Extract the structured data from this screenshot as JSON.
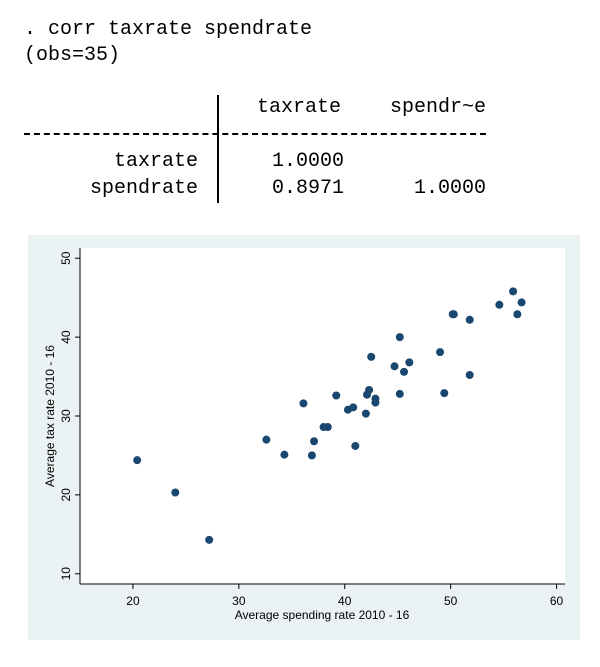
{
  "console": {
    "command": ". corr taxrate spendrate",
    "obs": "(obs=35)",
    "columns": [
      "taxrate",
      "spendr~e"
    ],
    "rows": [
      {
        "label": "taxrate",
        "values": [
          "1.0000"
        ]
      },
      {
        "label": "spendrate",
        "values": [
          "0.8971",
          "1.0000"
        ]
      }
    ]
  },
  "chart_data": {
    "type": "scatter",
    "x_label": "Average spending rate 2010 - 16",
    "y_label": "Average tax rate 2010 - 16",
    "x": [
      20.4,
      24.0,
      27.2,
      32.6,
      34.3,
      36.1,
      36.9,
      37.1,
      38.0,
      38.4,
      39.2,
      40.3,
      40.8,
      41.0,
      42.0,
      42.1,
      42.3,
      42.5,
      42.9,
      42.9,
      44.7,
      45.2,
      45.2,
      45.6,
      46.1,
      49.0,
      49.4,
      50.2,
      50.3,
      51.8,
      51.8,
      54.6,
      55.9,
      56.3,
      56.7
    ],
    "values": [
      24.4,
      20.3,
      14.3,
      27.0,
      25.1,
      31.6,
      25.0,
      26.8,
      28.6,
      28.6,
      32.6,
      30.8,
      31.1,
      26.2,
      30.3,
      32.7,
      33.3,
      37.5,
      32.2,
      31.7,
      36.3,
      40.0,
      32.8,
      35.6,
      36.8,
      38.1,
      32.9,
      42.9,
      42.9,
      35.2,
      42.2,
      44.1,
      45.8,
      42.9,
      44.4
    ],
    "color": "#1a476f",
    "xlim": [
      15,
      60.8
    ],
    "ylim": [
      8.7,
      51.3
    ],
    "xticks": [
      20,
      30,
      40,
      50,
      60
    ],
    "yticks": [
      10,
      20,
      30,
      40,
      50
    ]
  }
}
